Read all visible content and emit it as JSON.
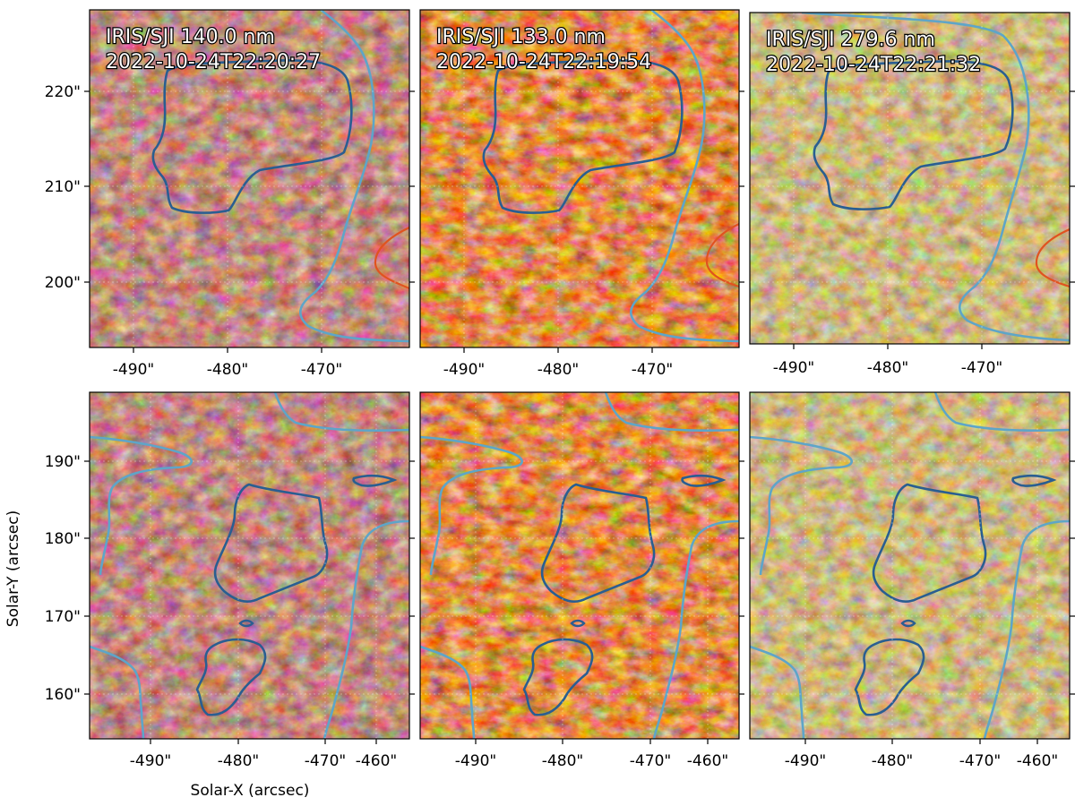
{
  "colors": {
    "sji_1400": [
      "#3a0d06",
      "#7e2912",
      "#c07468",
      "#fff2ee"
    ],
    "sji_1330": [
      "#2c0600",
      "#a62a00",
      "#f25a18",
      "#ffe2c8"
    ],
    "sji_2796": [
      "#3c2a04",
      "#7d5f16",
      "#c0a35c",
      "#fff3d6"
    ],
    "contour_dark": "#2a5e91",
    "contour_light": "#5ea5c8",
    "contour_orange": "#e05320"
  },
  "panels": [
    {
      "title_line1": "IRIS/SJI 140.0 nm",
      "title_line2": "2022-10-24T22:20:27",
      "cmap": "sji_1400"
    },
    {
      "title_line1": "IRIS/SJI 133.0 nm",
      "title_line2": "2022-10-24T22:19:54",
      "cmap": "sji_1330"
    },
    {
      "title_line1": "IRIS/SJI 279.6 nm",
      "title_line2": "2022-10-24T22:21:32",
      "cmap": "sji_2796"
    },
    {
      "cmap": "sji_1400"
    },
    {
      "cmap": "sji_1330"
    },
    {
      "cmap": "sji_2796"
    }
  ],
  "top_row": {
    "x_ticks": [
      "-490\"",
      "-480\"",
      "-470\""
    ],
    "y_ticks": [
      "220\"",
      "210\"",
      "200\""
    ]
  },
  "bottom_row": {
    "x_ticks": [
      "-490\"",
      "-480\"",
      "-470\"",
      "-460\""
    ],
    "y_ticks": [
      "190\"",
      "180\"",
      "170\"",
      "160\""
    ]
  },
  "xlabel": "Solar-X (arcsec)",
  "ylabel": "Solar-Y (arcsec)"
}
